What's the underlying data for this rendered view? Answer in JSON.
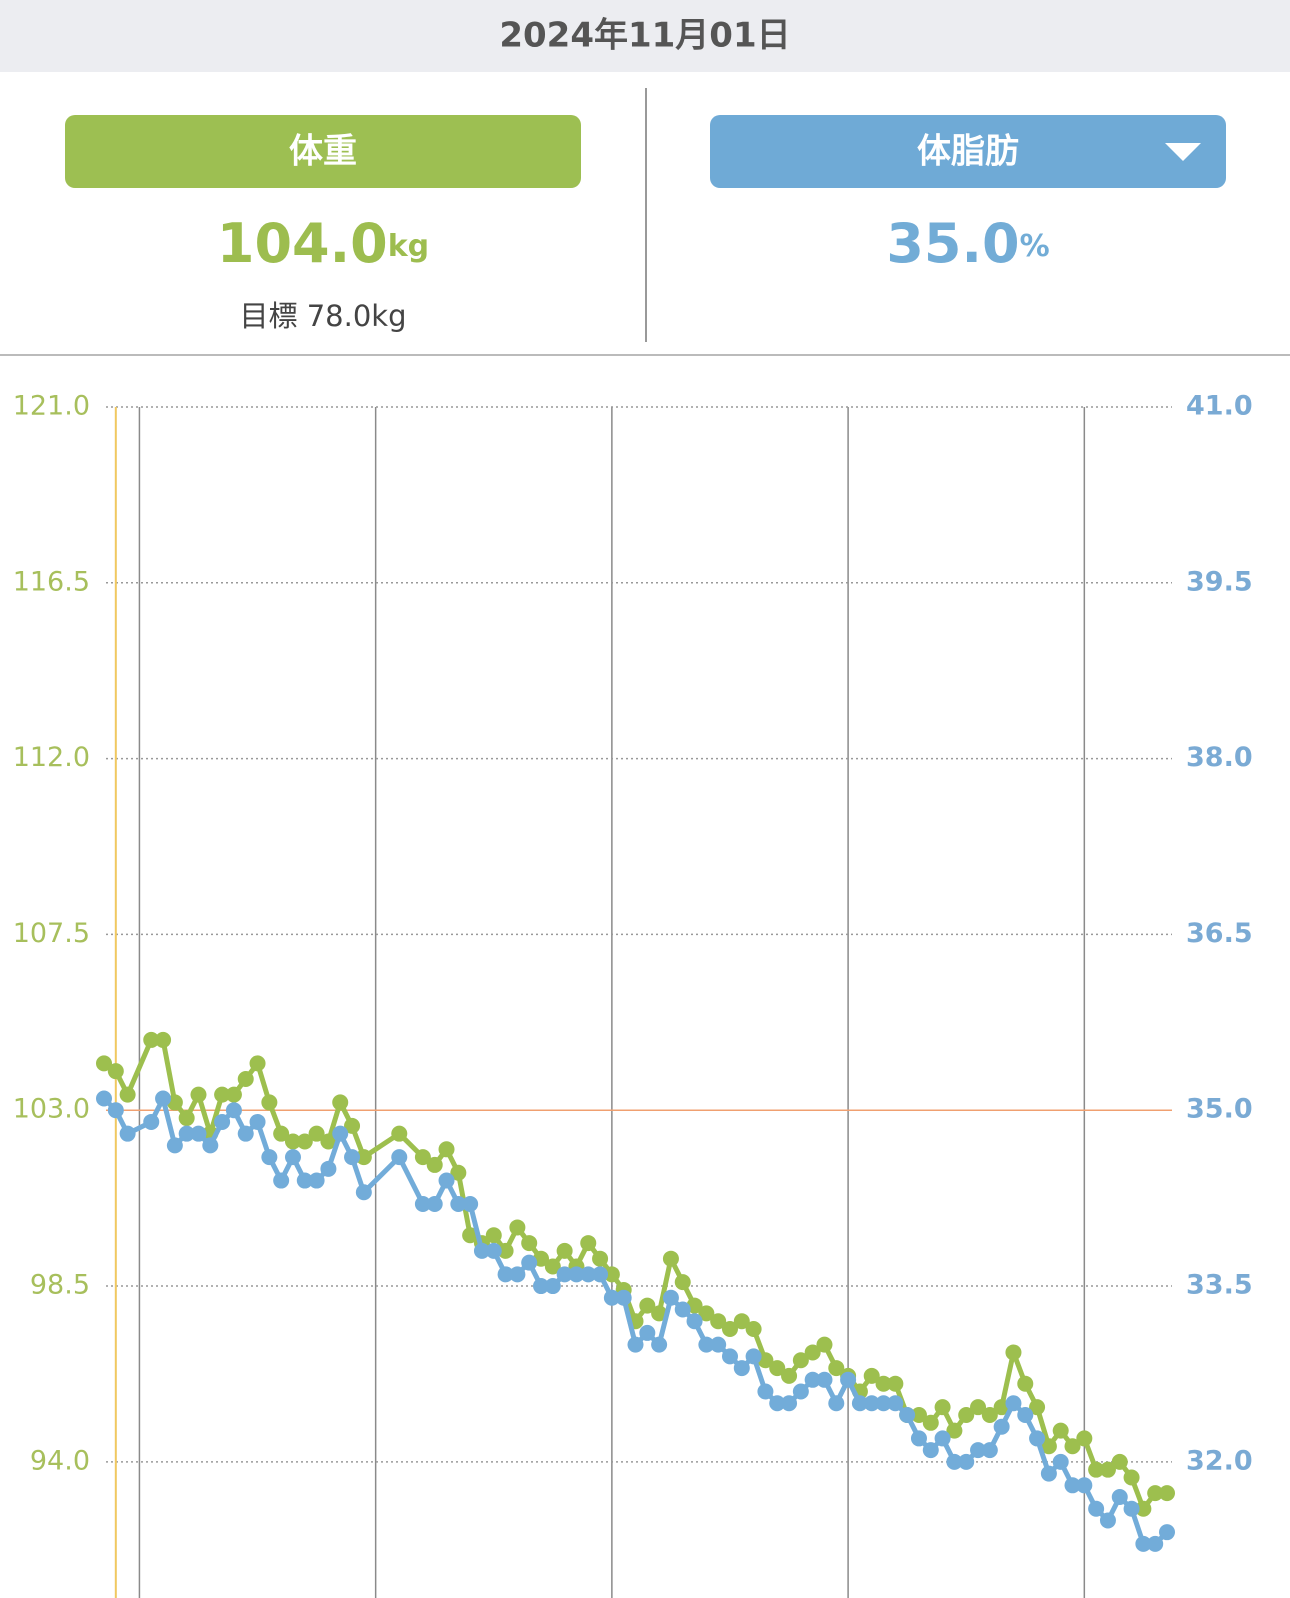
{
  "header": {
    "date": "2024年11月01日"
  },
  "weight": {
    "label": "体重",
    "value": "104.0",
    "unit": "kg",
    "goal": "目標 78.0kg"
  },
  "body_fat": {
    "label": "体脂肪",
    "value": "35.0",
    "unit": "%"
  },
  "chart_data": {
    "type": "line",
    "x": [
      0,
      1,
      2,
      4,
      5,
      6,
      7,
      8,
      9,
      10,
      11,
      12,
      13,
      14,
      15,
      16,
      17,
      18,
      19,
      20,
      21,
      22,
      25,
      27,
      28,
      29,
      30,
      31,
      32,
      33,
      34,
      35,
      36,
      37,
      38,
      39,
      40,
      41,
      42,
      43,
      44,
      45,
      46,
      47,
      48,
      49,
      50,
      51,
      52,
      53,
      54,
      55,
      56,
      57,
      58,
      59,
      60,
      61,
      62,
      63,
      64,
      65,
      66,
      67,
      68,
      69,
      70,
      71,
      72,
      73,
      74,
      75,
      76,
      77,
      78,
      79,
      80,
      81,
      82,
      83,
      84,
      85,
      86,
      87,
      88,
      89,
      90
    ],
    "xlim": [
      0,
      90
    ],
    "xticks": [
      3,
      23,
      43,
      63,
      83
    ],
    "ylim": [
      90.4,
      121.0
    ],
    "yticks": [
      {
        "value": 121.0,
        "label": "121.0"
      },
      {
        "value": 116.5,
        "label": "116.5"
      },
      {
        "value": 112.0,
        "label": "112.0"
      },
      {
        "value": 107.5,
        "label": "107.5"
      },
      {
        "value": 103.0,
        "label": "103.0"
      },
      {
        "value": 98.5,
        "label": "98.5"
      },
      {
        "value": 94.0,
        "label": "94.0"
      }
    ],
    "y2lim": [
      30.8,
      41.0
    ],
    "y2ticks": [
      {
        "value": 41.0,
        "label": "41.0"
      },
      {
        "value": 39.5,
        "label": "39.5"
      },
      {
        "value": 38.0,
        "label": "38.0"
      },
      {
        "value": 36.5,
        "label": "36.5"
      },
      {
        "value": 35.0,
        "label": "35.0"
      },
      {
        "value": 33.5,
        "label": "33.5"
      },
      {
        "value": 32.0,
        "label": "32.0"
      }
    ],
    "reference_line": 103.0,
    "cursor_x": 1,
    "grid": true,
    "series": [
      {
        "name": "体重",
        "color": "#9dbf4e",
        "axis": "y",
        "values": [
          104.2,
          104.0,
          103.4,
          104.8,
          104.8,
          103.2,
          102.8,
          103.4,
          102.4,
          103.4,
          103.4,
          103.8,
          104.2,
          103.2,
          102.4,
          102.2,
          102.2,
          102.4,
          102.2,
          103.2,
          102.6,
          101.8,
          102.4,
          101.8,
          101.6,
          102.0,
          101.4,
          99.8,
          99.6,
          99.8,
          99.4,
          100.0,
          99.6,
          99.2,
          99.0,
          99.4,
          99.0,
          99.6,
          99.2,
          98.8,
          98.4,
          97.6,
          98.0,
          97.8,
          99.2,
          98.6,
          98.0,
          97.8,
          97.6,
          97.4,
          97.6,
          97.4,
          96.6,
          96.4,
          96.2,
          96.6,
          96.8,
          97.0,
          96.4,
          96.2,
          95.8,
          96.2,
          96.0,
          96.0,
          95.2,
          95.2,
          95.0,
          95.4,
          94.8,
          95.2,
          95.4,
          95.2,
          95.4,
          96.8,
          96.0,
          95.4,
          94.4,
          94.8,
          94.4,
          94.6,
          93.8,
          93.8,
          94.0,
          93.6,
          92.8,
          93.2,
          93.2
        ]
      },
      {
        "name": "体脂肪",
        "color": "#72acd9",
        "axis": "y2",
        "values": [
          35.1,
          35.0,
          34.8,
          34.9,
          35.1,
          34.7,
          34.8,
          34.8,
          34.7,
          34.9,
          35.0,
          34.8,
          34.9,
          34.6,
          34.4,
          34.6,
          34.4,
          34.4,
          34.5,
          34.8,
          34.6,
          34.3,
          34.6,
          34.2,
          34.2,
          34.4,
          34.2,
          34.2,
          33.8,
          33.8,
          33.6,
          33.6,
          33.7,
          33.5,
          33.5,
          33.6,
          33.6,
          33.6,
          33.6,
          33.4,
          33.4,
          33.0,
          33.1,
          33.0,
          33.4,
          33.3,
          33.2,
          33.0,
          33.0,
          32.9,
          32.8,
          32.9,
          32.6,
          32.5,
          32.5,
          32.6,
          32.7,
          32.7,
          32.5,
          32.7,
          32.5,
          32.5,
          32.5,
          32.5,
          32.4,
          32.2,
          32.1,
          32.2,
          32.0,
          32.0,
          32.1,
          32.1,
          32.3,
          32.5,
          32.4,
          32.2,
          31.9,
          32.0,
          31.8,
          31.8,
          31.6,
          31.5,
          31.7,
          31.6,
          31.3,
          31.3,
          31.4
        ]
      }
    ]
  }
}
